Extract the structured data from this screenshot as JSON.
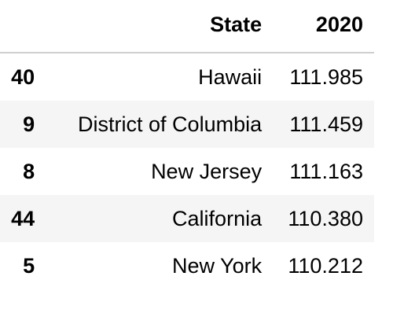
{
  "table": {
    "columns": [
      "",
      "State",
      "2020"
    ],
    "rows": [
      {
        "index": "40",
        "state": "Hawaii",
        "value": "111.985"
      },
      {
        "index": "9",
        "state": "District of Columbia",
        "value": "111.459"
      },
      {
        "index": "8",
        "state": "New Jersey",
        "value": "111.163"
      },
      {
        "index": "44",
        "state": "California",
        "value": "110.380"
      },
      {
        "index": "5",
        "state": "New York",
        "value": "110.212"
      }
    ]
  }
}
